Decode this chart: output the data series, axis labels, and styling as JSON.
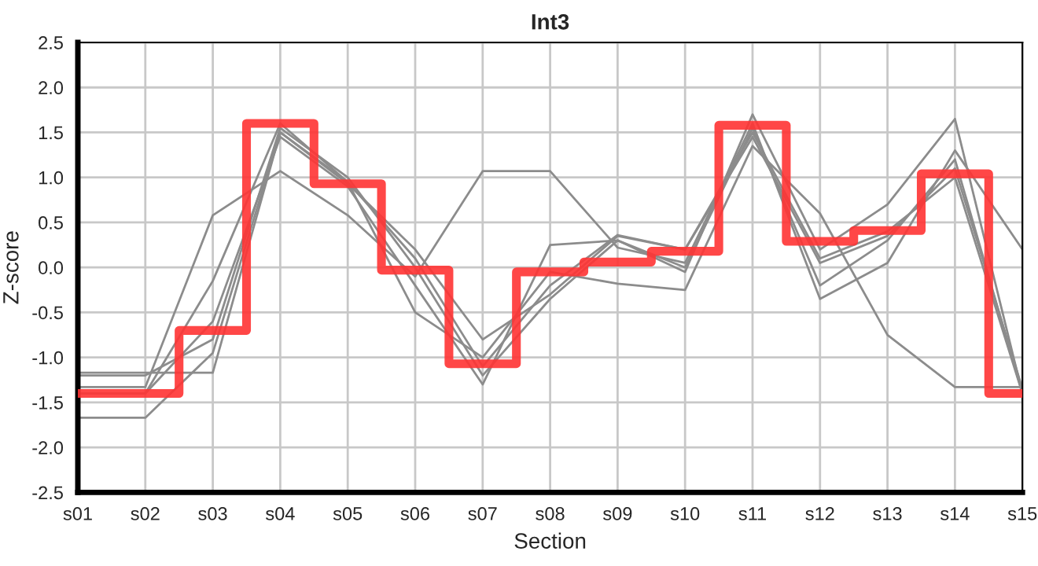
{
  "chart_data": {
    "type": "line",
    "title": "Int3",
    "xlabel": "Section",
    "ylabel": "Z-score",
    "categories": [
      "s01",
      "s02",
      "s03",
      "s04",
      "s05",
      "s06",
      "s07",
      "s08",
      "s09",
      "s10",
      "s11",
      "s12",
      "s13",
      "s14",
      "s15"
    ],
    "ylim": [
      -2.5,
      2.5
    ],
    "yticks": [
      -2.5,
      {
        "value": -2,
        "label": "-2.0"
      },
      -1.5,
      {
        "value": -1,
        "label": "-1.0"
      },
      -0.5,
      {
        "value": 0,
        "label": "0.0"
      },
      0.5,
      {
        "value": 1,
        "label": "1.0"
      },
      1.5,
      {
        "value": 2,
        "label": "2.0"
      },
      2.5
    ],
    "grid": true,
    "marker": "none",
    "line_style": "solid",
    "series": [
      {
        "color": "#8c8c8c",
        "values": [
          -1.17,
          -1.17,
          -1.17,
          1.5,
          0.93,
          0.2,
          -0.8,
          -0.3,
          0.35,
          0.2,
          1.45,
          0.05,
          0.35,
          1.1,
          -1.35
        ]
      },
      {
        "color": "#8c8c8c",
        "values": [
          -1.33,
          -1.33,
          0.58,
          1.07,
          0.58,
          -0.1,
          1.07,
          1.07,
          0.22,
          0.05,
          1.6,
          -0.35,
          0.05,
          1.3,
          0.2
        ]
      },
      {
        "color": "#8c8c8c",
        "values": [
          -1.67,
          -1.67,
          -0.95,
          1.5,
          0.95,
          0.1,
          -1.1,
          -0.2,
          0.36,
          0.2,
          1.5,
          0.1,
          0.4,
          1.0,
          -1.4
        ]
      },
      {
        "color": "#8c8c8c",
        "values": [
          -1.4,
          -1.4,
          -0.15,
          1.6,
          0.95,
          -0.5,
          -1.0,
          -0.05,
          -0.18,
          -0.25,
          1.35,
          0.6,
          -0.75,
          -1.33,
          -1.33
        ]
      },
      {
        "color": "#8c8c8c",
        "values": [
          -1.4,
          -1.4,
          -0.6,
          1.45,
          0.9,
          -0.2,
          -1.3,
          0.25,
          0.3,
          -0.05,
          1.7,
          0.2,
          0.7,
          1.65,
          -1.4
        ]
      },
      {
        "color": "#8c8c8c",
        "values": [
          -1.2,
          -1.2,
          -0.8,
          1.55,
          1.0,
          0.0,
          -1.2,
          -0.35,
          0.3,
          0.0,
          1.55,
          -0.2,
          0.3,
          1.2,
          -1.4
        ]
      },
      {
        "type": "step",
        "color": "#ff3333",
        "values": [
          -1.4,
          -1.4,
          -0.7,
          1.6,
          0.93,
          -0.03,
          -1.07,
          -0.05,
          0.06,
          0.18,
          1.58,
          0.29,
          0.41,
          1.04,
          -1.4
        ]
      }
    ]
  }
}
